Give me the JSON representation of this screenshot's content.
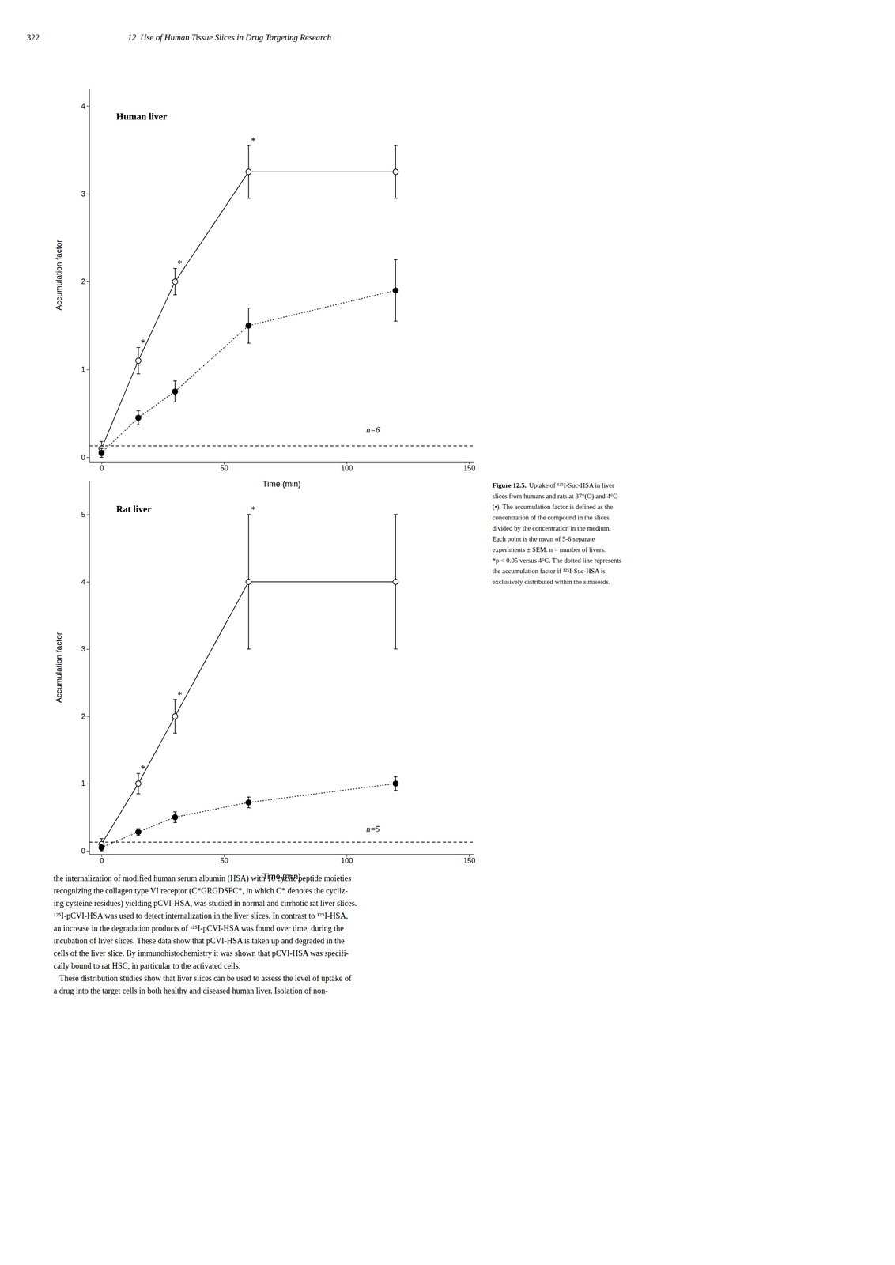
{
  "page": {
    "header": [
      "322",
      "12  Use of Human Tissue Slices in Drug Targeting Research"
    ],
    "caption_label": "Figure 12.5.",
    "caption": [
      "Uptake of ¹²⁵I-Suc-HSA in liver",
      "slices from humans and rats at 37°(O) and 4°C",
      "(•). The accumulation factor is defined as the",
      "concentration of the compound in the slices",
      "divided by the concentration in the medium.",
      "Each point is the mean of 5-6 separate",
      "experiments ± SEM. n = number of livers.",
      "*p < 0.05 versus 4°C. The dotted line represents",
      "the accumulation factor if ¹²⁵I-Suc-HSA is",
      "exclusively distributed within the sinusoids."
    ],
    "body": [
      "the internalization of modified human serum albumin (HSA) with 10 cyclic peptide moieties",
      "recognizing the collagen type VI receptor (C*GRGDSPC*, in which C* denotes the cycliz-",
      "ing cysteine residues) yielding pCVI-HSA, was studied in normal and cirrhotic rat liver slices.",
      "¹²⁵I-pCVI-HSA was used to detect internalization in the liver slices. In contrast to ¹²⁵I-HSA,",
      "an increase in the degradation products of ¹²⁵I-pCVI-HSA was found over time, during the",
      "incubation of liver slices. These data show that pCVI-HSA is taken up and degraded in the",
      "cells of the liver slice. By immunohistochemistry it was shown that pCVI-HSA was specifi-",
      "cally bound to rat HSC, in particular to the activated cells.",
      "   These distribution studies show that liver slices can be used to assess the level of uptake of",
      "a drug into the target cells in both healthy and diseased human liver. Isolation of non-"
    ]
  },
  "chart_data": [
    {
      "type": "line",
      "title": "Human liver",
      "x": [
        0,
        15,
        30,
        60,
        120
      ],
      "series": [
        {
          "color": "black",
          "marker": "open-circle",
          "line_style": "solid",
          "values": [
            0.1,
            1.1,
            2.0,
            3.25,
            3.25
          ],
          "errors": [
            0.08,
            0.15,
            0.15,
            0.3,
            0.3
          ],
          "point_labels": [
            null,
            "*",
            "*",
            "*",
            null
          ]
        },
        {
          "color": "black",
          "marker": "circle",
          "line_style": "dotted",
          "values": [
            0.05,
            0.45,
            0.75,
            1.5,
            1.9
          ],
          "errors": [
            0.05,
            0.08,
            0.12,
            0.2,
            0.35
          ]
        }
      ],
      "reference_lines": [
        {
          "y": 0.13,
          "color": "black",
          "line_style": "dashed"
        }
      ],
      "annotations": [
        {
          "text": "n=6",
          "x": 108,
          "y": 0.28
        }
      ],
      "xlim": [
        -5,
        152
      ],
      "ylim": [
        -0.05,
        4.2
      ],
      "xticks": [
        0,
        50,
        100,
        150
      ],
      "yticks": [
        0,
        1,
        2,
        3,
        4
      ],
      "xlabel": "Time (min)",
      "ylabel": "Accumulation factor",
      "grid": false
    },
    {
      "type": "line",
      "title": "Rat liver",
      "x": [
        0,
        15,
        30,
        60,
        120
      ],
      "series": [
        {
          "color": "black",
          "marker": "open-circle",
          "line_style": "solid",
          "values": [
            0.1,
            1.0,
            2.0,
            4.0,
            4.0
          ],
          "errors": [
            0.08,
            0.15,
            0.25,
            1.0,
            1.0
          ],
          "point_labels": [
            null,
            "*",
            "*",
            "*",
            null
          ]
        },
        {
          "color": "black",
          "marker": "circle",
          "line_style": "dotted",
          "values": [
            0.05,
            0.28,
            0.5,
            0.72,
            1.0
          ],
          "errors": [
            0.05,
            0.05,
            0.08,
            0.08,
            0.1
          ]
        }
      ],
      "reference_lines": [
        {
          "y": 0.13,
          "color": "black",
          "line_style": "dashed"
        }
      ],
      "annotations": [
        {
          "text": "n=5",
          "x": 108,
          "y": 0.28
        }
      ],
      "xlim": [
        -5,
        152
      ],
      "ylim": [
        -0.05,
        5.5
      ],
      "xticks": [
        0,
        50,
        100,
        150
      ],
      "yticks": [
        0,
        1,
        2,
        3,
        4,
        5
      ],
      "xlabel": "Time (min)",
      "ylabel": "Accumulation factor",
      "grid": false
    }
  ]
}
